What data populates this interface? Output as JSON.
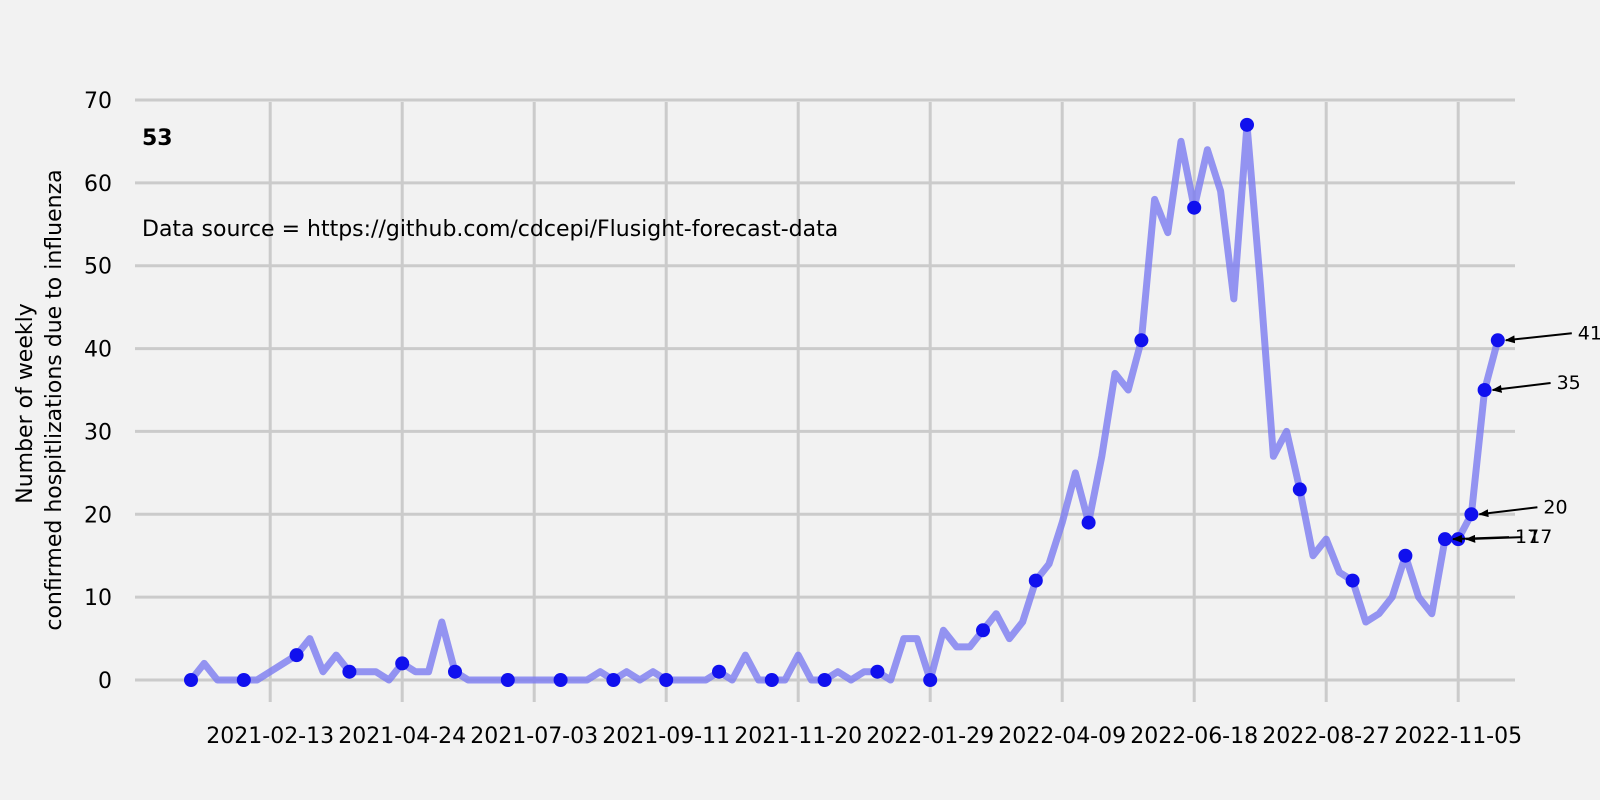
{
  "chart_data": {
    "type": "line",
    "title": "53",
    "annotation_text": "Data source = https://github.com/cdcepi/Flusight-forecast-data",
    "xlabel": "",
    "ylabel_lines": [
      "Number of weekly",
      "confirmed hospitlizations due to influenza"
    ],
    "ylim": [
      0,
      70
    ],
    "y_ticks": [
      0,
      10,
      20,
      30,
      40,
      50,
      60,
      70
    ],
    "x_start": "2021-01-02",
    "x_ticks": [
      "2021-02-13",
      "2021-04-24",
      "2021-07-03",
      "2021-09-11",
      "2021-11-20",
      "2022-01-29",
      "2022-04-09",
      "2022-06-18",
      "2022-08-27",
      "2022-11-05"
    ],
    "grid": true,
    "colors": {
      "line": "#7b7bf0",
      "marker": "#1010ee",
      "grid": "#cbcbcb",
      "background": "#f2f2f2"
    },
    "series": [
      {
        "values": [
          0,
          2,
          0,
          0,
          0,
          0,
          1,
          2,
          3,
          5,
          1,
          3,
          1,
          1,
          1,
          0,
          2,
          1,
          1,
          7,
          1,
          0,
          0,
          0,
          0,
          0,
          0,
          0,
          0,
          0,
          0,
          1,
          0,
          1,
          0,
          1,
          0,
          0,
          0,
          0,
          1,
          0,
          3,
          0,
          0,
          0,
          3,
          0,
          0,
          1,
          0,
          1,
          1,
          0,
          5,
          5,
          0,
          6,
          4,
          4,
          6,
          8,
          5,
          7,
          12,
          14,
          19,
          25,
          19,
          27,
          37,
          35,
          41,
          58,
          54,
          65,
          57,
          64,
          59,
          46,
          67,
          48,
          27,
          30,
          23,
          15,
          17,
          13,
          12,
          7,
          8,
          10,
          15,
          10,
          8,
          17,
          17,
          20,
          35,
          41
        ]
      }
    ],
    "annotations": [
      {
        "x_index": 95,
        "value": 17,
        "label": "17"
      },
      {
        "x_index": 96,
        "value": 17,
        "label": "17"
      },
      {
        "x_index": 97,
        "value": 20,
        "label": "20"
      },
      {
        "x_index": 98,
        "value": 35,
        "label": "35"
      },
      {
        "x_index": 99,
        "value": 41,
        "label": "41"
      }
    ]
  }
}
